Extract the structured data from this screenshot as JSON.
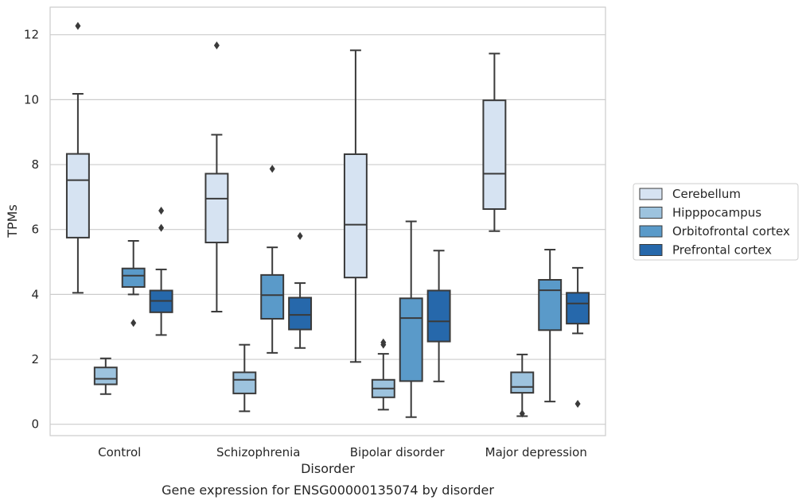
{
  "chart_data": {
    "type": "box",
    "categories": [
      "Control",
      "Schizophrenia",
      "Bipolar disorder",
      "Major depression"
    ],
    "xlabel": "Disorder",
    "ylabel": "TPMs",
    "caption": "Gene expression for ENSG00000135074 by disorder",
    "ylim": [
      -0.35,
      12.85
    ],
    "yticks": [
      0,
      2,
      4,
      6,
      8,
      10,
      12
    ],
    "grid": "horizontal",
    "legend_position": "right",
    "series": [
      {
        "name": "Cerebellum",
        "color": "#d6e3f2",
        "boxes": [
          {
            "whislo": 4.05,
            "q1": 5.75,
            "med": 7.52,
            "q3": 8.33,
            "whishi": 10.18,
            "fliers": [
              12.27
            ]
          },
          {
            "whislo": 3.47,
            "q1": 5.6,
            "med": 6.95,
            "q3": 7.72,
            "whishi": 8.92,
            "fliers": [
              11.67
            ]
          },
          {
            "whislo": 1.92,
            "q1": 4.52,
            "med": 6.15,
            "q3": 8.32,
            "whishi": 11.52,
            "fliers": []
          },
          {
            "whislo": 5.95,
            "q1": 6.63,
            "med": 7.72,
            "q3": 9.98,
            "whishi": 11.42,
            "fliers": []
          }
        ]
      },
      {
        "name": "Hipppocampus",
        "color": "#9dc3de",
        "boxes": [
          {
            "whislo": 0.93,
            "q1": 1.23,
            "med": 1.4,
            "q3": 1.75,
            "whishi": 2.03,
            "fliers": []
          },
          {
            "whislo": 0.4,
            "q1": 0.95,
            "med": 1.37,
            "q3": 1.6,
            "whishi": 2.45,
            "fliers": []
          },
          {
            "whislo": 0.45,
            "q1": 0.83,
            "med": 1.1,
            "q3": 1.37,
            "whishi": 2.17,
            "fliers": [
              2.45,
              2.52
            ]
          },
          {
            "whislo": 0.25,
            "q1": 0.97,
            "med": 1.15,
            "q3": 1.6,
            "whishi": 2.15,
            "fliers": [
              0.33
            ]
          }
        ]
      },
      {
        "name": "Orbitofrontal cortex",
        "color": "#5a9ac9",
        "boxes": [
          {
            "whislo": 4.0,
            "q1": 4.23,
            "med": 4.58,
            "q3": 4.8,
            "whishi": 5.65,
            "fliers": [
              3.12
            ]
          },
          {
            "whislo": 2.2,
            "q1": 3.25,
            "med": 3.98,
            "q3": 4.6,
            "whishi": 5.45,
            "fliers": [
              7.87
            ]
          },
          {
            "whislo": 0.22,
            "q1": 1.33,
            "med": 3.27,
            "q3": 3.88,
            "whishi": 6.25,
            "fliers": []
          },
          {
            "whislo": 0.7,
            "q1": 2.9,
            "med": 4.13,
            "q3": 4.45,
            "whishi": 5.38,
            "fliers": []
          }
        ]
      },
      {
        "name": "Prefrontal cortex",
        "color": "#2668ab",
        "boxes": [
          {
            "whislo": 2.75,
            "q1": 3.45,
            "med": 3.8,
            "q3": 4.12,
            "whishi": 4.77,
            "fliers": [
              6.05,
              6.58
            ]
          },
          {
            "whislo": 2.35,
            "q1": 2.92,
            "med": 3.37,
            "q3": 3.9,
            "whishi": 4.35,
            "fliers": [
              5.8
            ]
          },
          {
            "whislo": 1.32,
            "q1": 2.55,
            "med": 3.17,
            "q3": 4.12,
            "whishi": 5.35,
            "fliers": []
          },
          {
            "whislo": 2.8,
            "q1": 3.1,
            "med": 3.72,
            "q3": 4.05,
            "whishi": 4.82,
            "fliers": [
              0.63
            ]
          }
        ]
      }
    ]
  }
}
